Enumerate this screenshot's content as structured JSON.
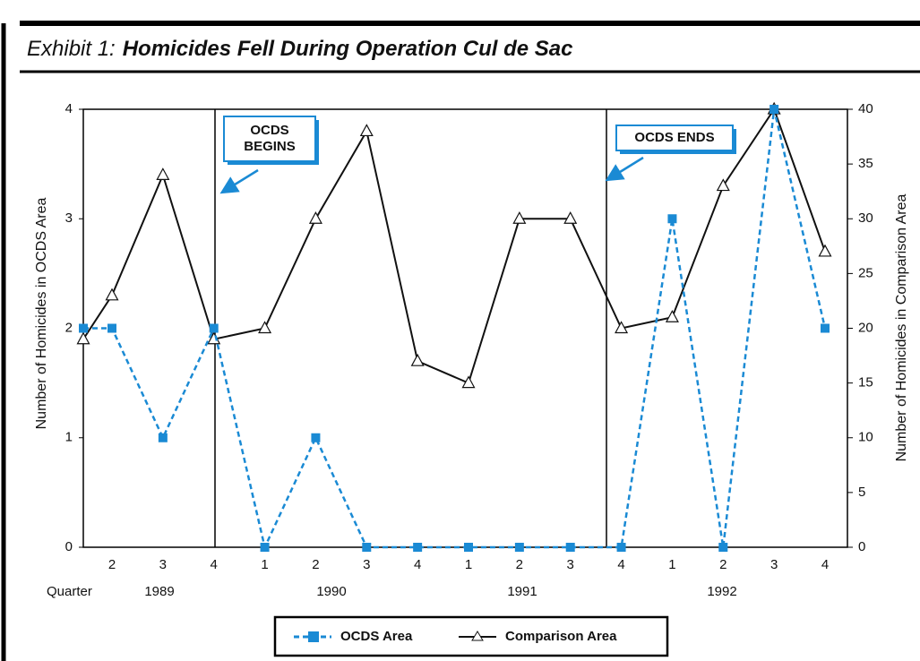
{
  "chart_data": {
    "type": "line",
    "title": {
      "prefix": "Exhibit 1:",
      "main": "Homicides Fell During Operation Cul de Sac"
    },
    "y_label": "Number of Homicides in OCDS Area",
    "y2_label": "Number of Homicides in Comparison Area",
    "x_label": "Quarter",
    "categories": [
      null,
      "2",
      "3",
      "4",
      "1",
      "2",
      "3",
      "4",
      "1",
      "2",
      "3",
      "4",
      "1",
      "2",
      "3",
      "4"
    ],
    "years": [
      "1989",
      "1990",
      "1991",
      "1992"
    ],
    "ylim": [
      0,
      4
    ],
    "yticks": [
      0,
      1,
      2,
      3,
      4
    ],
    "y2lim": [
      0,
      40
    ],
    "y2ticks": [
      0,
      5,
      10,
      15,
      20,
      25,
      30,
      35,
      40
    ],
    "series": [
      {
        "name": "OCDS Area",
        "color": "#1a8ad4",
        "marker": "square",
        "dashed": true,
        "values": [
          2,
          2,
          1,
          2,
          0,
          1,
          0,
          0,
          0,
          0,
          0,
          0,
          3,
          0,
          4,
          2
        ]
      },
      {
        "name": "Comparison Area",
        "color": "#111111",
        "marker": "triangle",
        "axis": "y2",
        "values": [
          19,
          23,
          34,
          19,
          20,
          30,
          38,
          17,
          15,
          30,
          30,
          20,
          21,
          33,
          40,
          27
        ]
      }
    ],
    "annotations": [
      {
        "lines": [
          "OCDS",
          "BEGINS"
        ]
      },
      {
        "lines": [
          "OCDS ENDS"
        ]
      }
    ],
    "legend": "bottom"
  }
}
